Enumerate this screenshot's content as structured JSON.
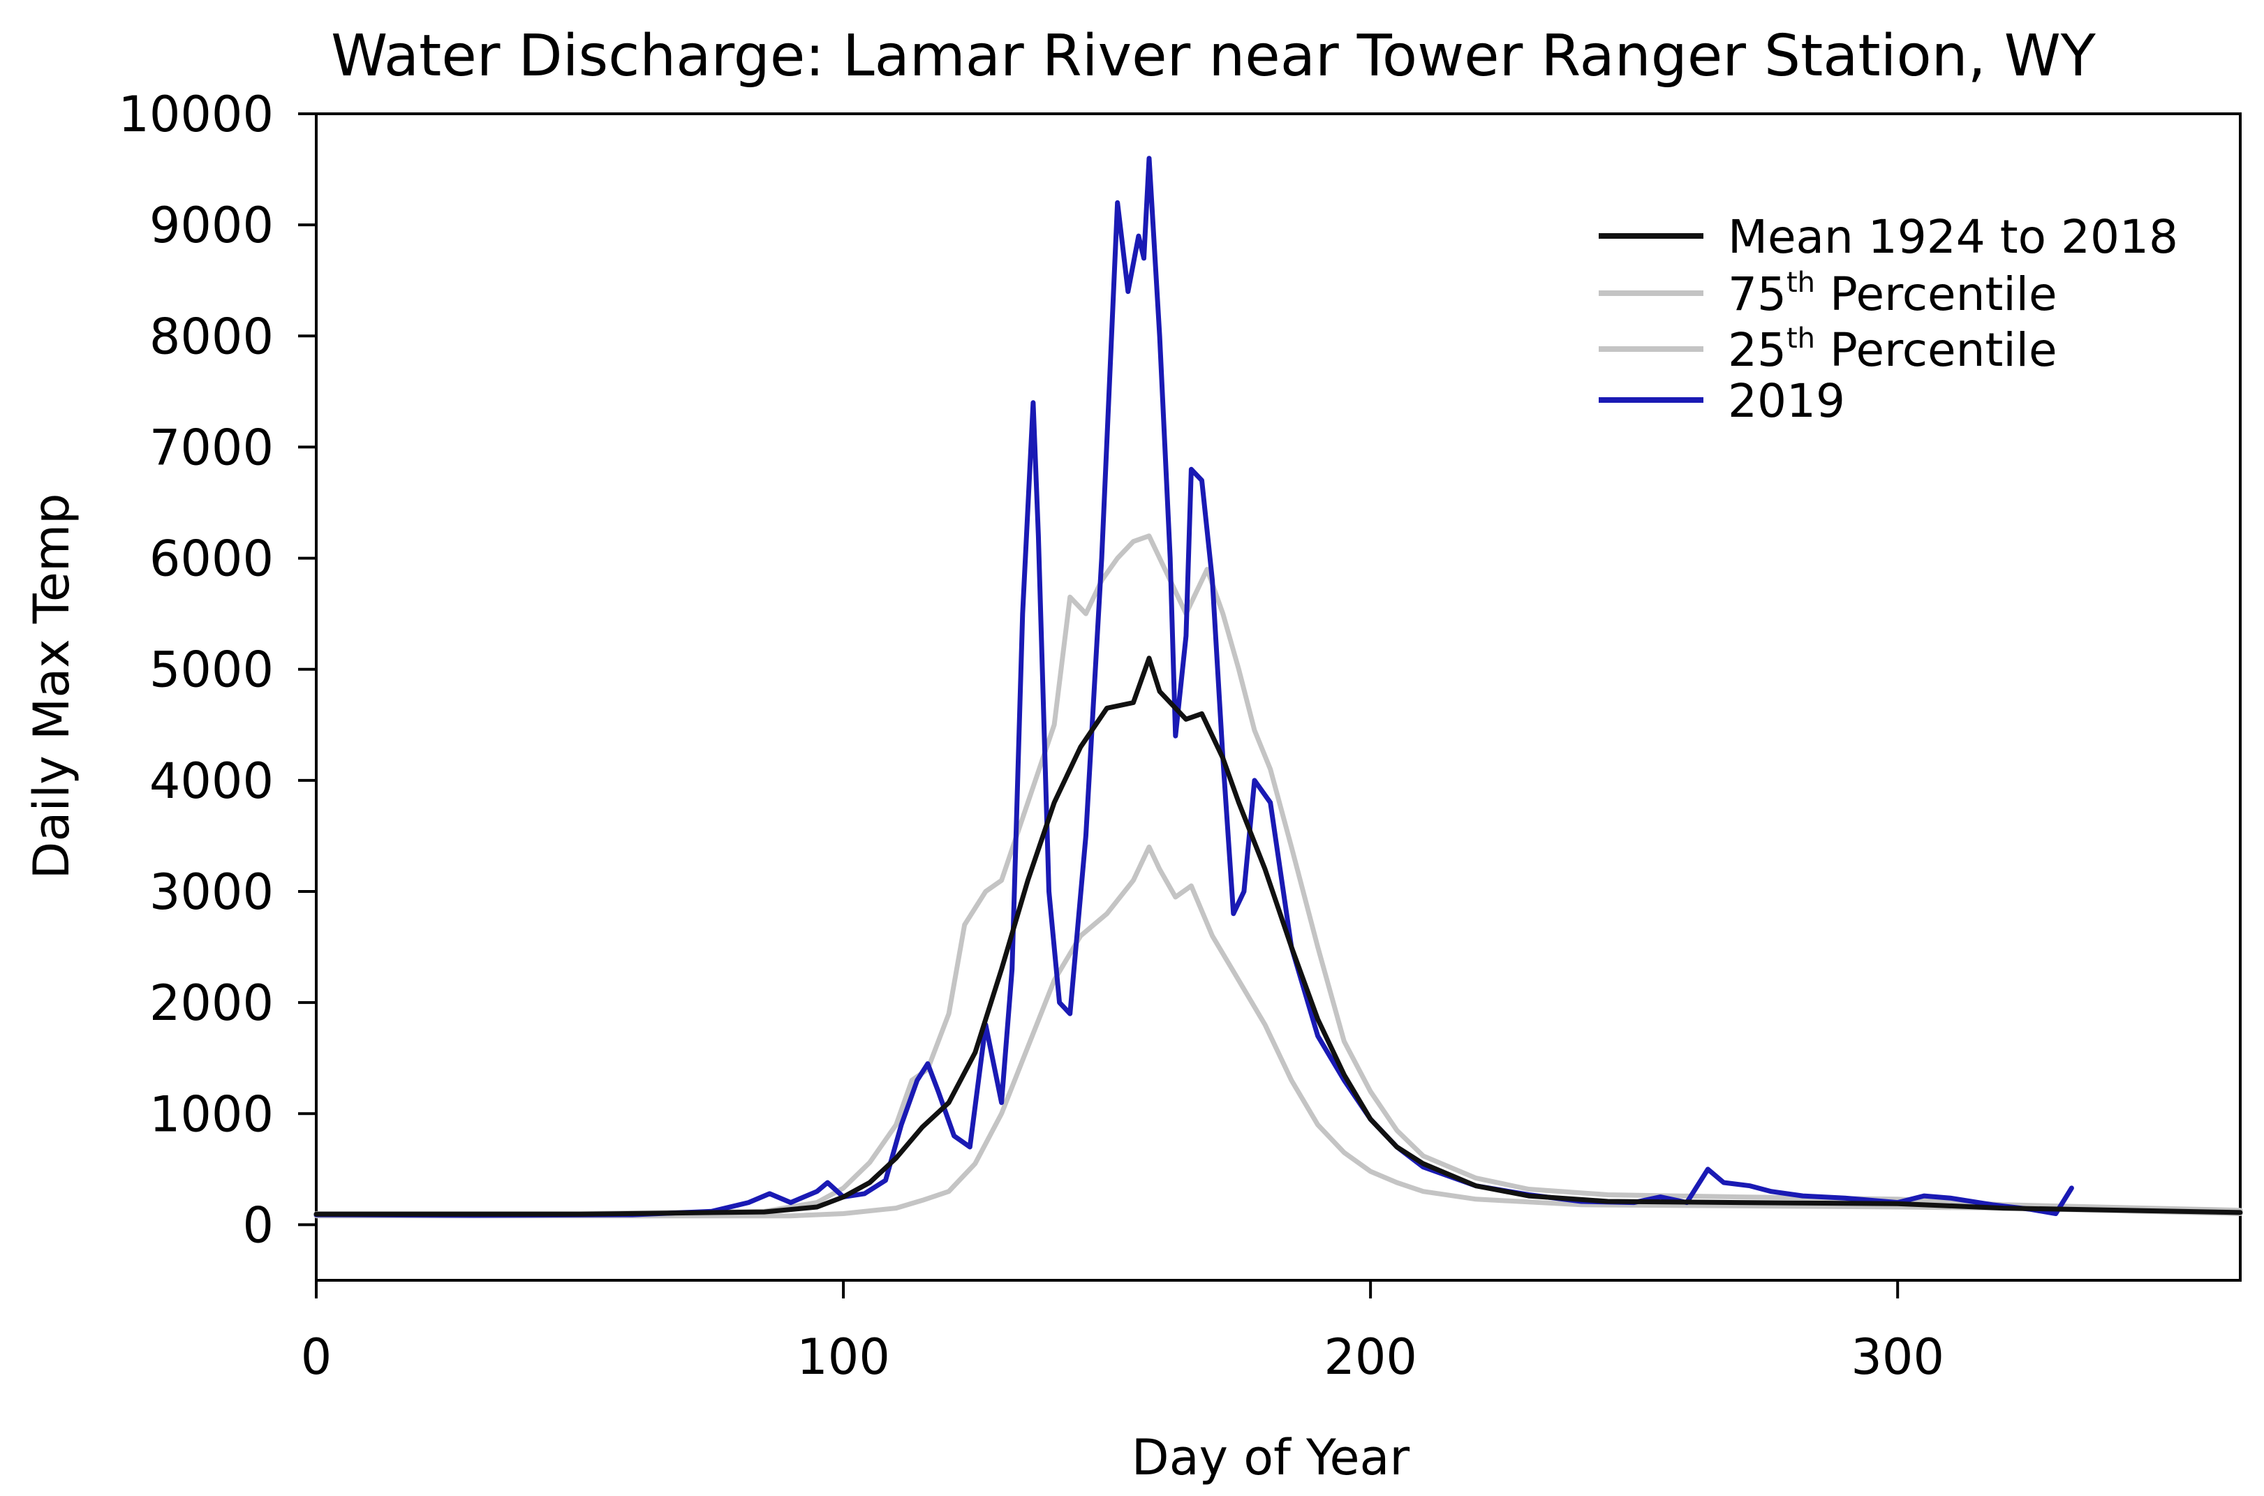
{
  "chart_data": {
    "type": "line",
    "title": "Water Discharge: Lamar River near Tower Ranger Station, WY",
    "xlabel": "Day of Year",
    "ylabel": "Daily Max Temp",
    "xlim": [
      0,
      365
    ],
    "ylim": [
      -500,
      10000
    ],
    "x_ticks": [
      0,
      100,
      200,
      300
    ],
    "y_ticks": [
      0,
      1000,
      2000,
      3000,
      4000,
      5000,
      6000,
      7000,
      8000,
      9000,
      10000
    ],
    "grid": false,
    "legend_position": "top-right",
    "colors": {
      "mean": "#111111",
      "p75": "#c4c4c4",
      "p25": "#c4c4c4",
      "y2019": "#1a1ab4"
    },
    "series": [
      {
        "key": "mean",
        "name": "Mean 1924 to 2018",
        "legend_label": "Mean 1924 to 2018",
        "points": [
          [
            0,
            95
          ],
          [
            50,
            95
          ],
          [
            85,
            115
          ],
          [
            95,
            160
          ],
          [
            100,
            250
          ],
          [
            105,
            380
          ],
          [
            110,
            600
          ],
          [
            115,
            880
          ],
          [
            120,
            1100
          ],
          [
            125,
            1550
          ],
          [
            130,
            2300
          ],
          [
            135,
            3100
          ],
          [
            140,
            3800
          ],
          [
            145,
            4300
          ],
          [
            150,
            4650
          ],
          [
            155,
            4700
          ],
          [
            158,
            5100
          ],
          [
            160,
            4800
          ],
          [
            165,
            4550
          ],
          [
            168,
            4600
          ],
          [
            172,
            4200
          ],
          [
            175,
            3800
          ],
          [
            180,
            3200
          ],
          [
            185,
            2500
          ],
          [
            190,
            1850
          ],
          [
            195,
            1350
          ],
          [
            200,
            950
          ],
          [
            205,
            700
          ],
          [
            210,
            550
          ],
          [
            220,
            350
          ],
          [
            230,
            260
          ],
          [
            245,
            210
          ],
          [
            270,
            200
          ],
          [
            300,
            190
          ],
          [
            320,
            150
          ],
          [
            365,
            110
          ]
        ]
      },
      {
        "key": "p75",
        "name": "75th Percentile",
        "legend_label": "75",
        "legend_sup": "th",
        "legend_rest": " Percentile",
        "points": [
          [
            0,
            100
          ],
          [
            50,
            100
          ],
          [
            85,
            120
          ],
          [
            95,
            200
          ],
          [
            100,
            330
          ],
          [
            105,
            560
          ],
          [
            110,
            900
          ],
          [
            113,
            1300
          ],
          [
            116,
            1400
          ],
          [
            120,
            1900
          ],
          [
            123,
            2700
          ],
          [
            127,
            3000
          ],
          [
            130,
            3100
          ],
          [
            135,
            3800
          ],
          [
            140,
            4500
          ],
          [
            143,
            5650
          ],
          [
            146,
            5500
          ],
          [
            149,
            5800
          ],
          [
            152,
            6000
          ],
          [
            155,
            6150
          ],
          [
            158,
            6200
          ],
          [
            161,
            5900
          ],
          [
            165,
            5500
          ],
          [
            169,
            5900
          ],
          [
            172,
            5500
          ],
          [
            175,
            5000
          ],
          [
            178,
            4450
          ],
          [
            181,
            4100
          ],
          [
            185,
            3400
          ],
          [
            190,
            2500
          ],
          [
            195,
            1650
          ],
          [
            200,
            1200
          ],
          [
            205,
            850
          ],
          [
            210,
            620
          ],
          [
            220,
            420
          ],
          [
            230,
            320
          ],
          [
            245,
            270
          ],
          [
            270,
            250
          ],
          [
            300,
            230
          ],
          [
            320,
            180
          ],
          [
            365,
            130
          ]
        ]
      },
      {
        "key": "p25",
        "name": "25th Percentile",
        "legend_label": "25",
        "legend_sup": "th",
        "legend_rest": " Percentile",
        "points": [
          [
            0,
            80
          ],
          [
            50,
            80
          ],
          [
            90,
            80
          ],
          [
            100,
            100
          ],
          [
            110,
            150
          ],
          [
            115,
            220
          ],
          [
            120,
            300
          ],
          [
            125,
            550
          ],
          [
            130,
            1000
          ],
          [
            135,
            1600
          ],
          [
            140,
            2200
          ],
          [
            145,
            2600
          ],
          [
            150,
            2800
          ],
          [
            155,
            3100
          ],
          [
            158,
            3400
          ],
          [
            160,
            3200
          ],
          [
            163,
            2950
          ],
          [
            166,
            3050
          ],
          [
            170,
            2600
          ],
          [
            175,
            2200
          ],
          [
            180,
            1800
          ],
          [
            185,
            1300
          ],
          [
            190,
            900
          ],
          [
            195,
            650
          ],
          [
            200,
            480
          ],
          [
            205,
            380
          ],
          [
            210,
            300
          ],
          [
            220,
            230
          ],
          [
            240,
            180
          ],
          [
            270,
            170
          ],
          [
            300,
            160
          ],
          [
            320,
            150
          ],
          [
            365,
            100
          ]
        ]
      },
      {
        "key": "y2019",
        "name": "2019",
        "legend_label": "2019",
        "points": [
          [
            0,
            90
          ],
          [
            30,
            85
          ],
          [
            60,
            90
          ],
          [
            75,
            120
          ],
          [
            82,
            200
          ],
          [
            86,
            280
          ],
          [
            90,
            200
          ],
          [
            95,
            300
          ],
          [
            97,
            380
          ],
          [
            100,
            250
          ],
          [
            104,
            280
          ],
          [
            108,
            400
          ],
          [
            111,
            900
          ],
          [
            114,
            1300
          ],
          [
            116,
            1450
          ],
          [
            118,
            1200
          ],
          [
            121,
            800
          ],
          [
            124,
            700
          ],
          [
            127,
            1800
          ],
          [
            130,
            1100
          ],
          [
            132,
            2300
          ],
          [
            134,
            5500
          ],
          [
            136,
            7400
          ],
          [
            137,
            6200
          ],
          [
            139,
            3000
          ],
          [
            141,
            2000
          ],
          [
            143,
            1900
          ],
          [
            146,
            3500
          ],
          [
            149,
            6000
          ],
          [
            152,
            9200
          ],
          [
            154,
            8400
          ],
          [
            156,
            8900
          ],
          [
            157,
            8700
          ],
          [
            158,
            9600
          ],
          [
            160,
            8000
          ],
          [
            162,
            6000
          ],
          [
            163,
            4400
          ],
          [
            165,
            5300
          ],
          [
            166,
            6800
          ],
          [
            168,
            6700
          ],
          [
            170,
            5800
          ],
          [
            172,
            4200
          ],
          [
            174,
            2800
          ],
          [
            176,
            3000
          ],
          [
            178,
            4000
          ],
          [
            181,
            3800
          ],
          [
            185,
            2500
          ],
          [
            190,
            1700
          ],
          [
            195,
            1300
          ],
          [
            200,
            950
          ],
          [
            205,
            700
          ],
          [
            210,
            520
          ],
          [
            220,
            350
          ],
          [
            230,
            270
          ],
          [
            240,
            210
          ],
          [
            250,
            200
          ],
          [
            255,
            250
          ],
          [
            260,
            200
          ],
          [
            262,
            350
          ],
          [
            264,
            500
          ],
          [
            267,
            380
          ],
          [
            272,
            350
          ],
          [
            276,
            300
          ],
          [
            282,
            260
          ],
          [
            290,
            240
          ],
          [
            300,
            200
          ],
          [
            305,
            260
          ],
          [
            310,
            240
          ],
          [
            318,
            180
          ],
          [
            325,
            140
          ],
          [
            330,
            100
          ],
          [
            333,
            330
          ]
        ]
      }
    ]
  }
}
